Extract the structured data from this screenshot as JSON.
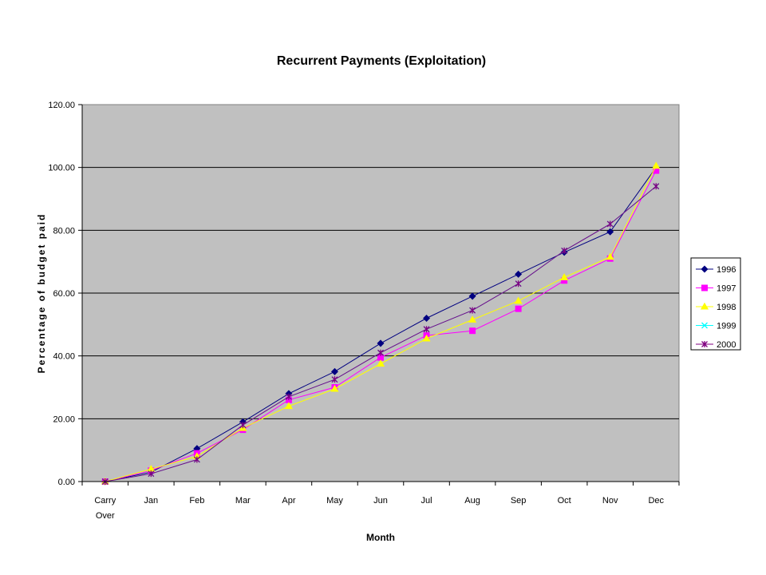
{
  "chart_data": {
    "type": "line",
    "title": "Recurrent Payments (Exploitation)",
    "xlabel": "Month",
    "ylabel": "Percentage of budget paid",
    "categories": [
      [
        "Carry",
        "Over"
      ],
      [
        "Jan"
      ],
      [
        "Feb"
      ],
      [
        "Mar"
      ],
      [
        "Apr"
      ],
      [
        "May"
      ],
      [
        "Jun"
      ],
      [
        "Jul"
      ],
      [
        "Aug"
      ],
      [
        "Sep"
      ],
      [
        "Oct"
      ],
      [
        "Nov"
      ],
      [
        "Dec"
      ]
    ],
    "ylim": [
      0,
      120
    ],
    "yticks": [
      "0.00",
      "20.00",
      "40.00",
      "60.00",
      "80.00",
      "100.00",
      "120.00"
    ],
    "grid": true,
    "legend_position": "right",
    "plot_background": "#c0c0c0",
    "series": [
      {
        "name": "1996",
        "color": "#000080",
        "marker": "diamond",
        "values": [
          0,
          3.0,
          10.5,
          19.0,
          28.0,
          35.0,
          44.0,
          52.0,
          59.0,
          66.0,
          73.0,
          79.5,
          100.0
        ]
      },
      {
        "name": "1997",
        "color": "#ff00ff",
        "marker": "square",
        "values": [
          0,
          3.5,
          9.0,
          16.5,
          26.0,
          30.0,
          39.5,
          46.5,
          48.0,
          55.0,
          64.0,
          71.0,
          99.0
        ]
      },
      {
        "name": "1998",
        "color": "#ffff00",
        "marker": "triangle",
        "values": [
          0,
          4.0,
          8.0,
          17.0,
          24.0,
          29.5,
          37.5,
          45.5,
          51.5,
          57.5,
          65.0,
          71.5,
          100.5
        ]
      },
      {
        "name": "1999",
        "color": "#00ffff",
        "marker": "x",
        "values": [
          0,
          2.5,
          7.0,
          18.0,
          27.0,
          32.5,
          41.0,
          48.5,
          54.5,
          63.0,
          73.5,
          82.0,
          94.0
        ]
      },
      {
        "name": "2000",
        "color": "#800080",
        "marker": "star",
        "values": [
          0,
          2.5,
          7.0,
          18.0,
          27.0,
          32.5,
          41.0,
          48.5,
          54.5,
          63.0,
          73.5,
          82.0,
          94.0
        ]
      }
    ]
  }
}
